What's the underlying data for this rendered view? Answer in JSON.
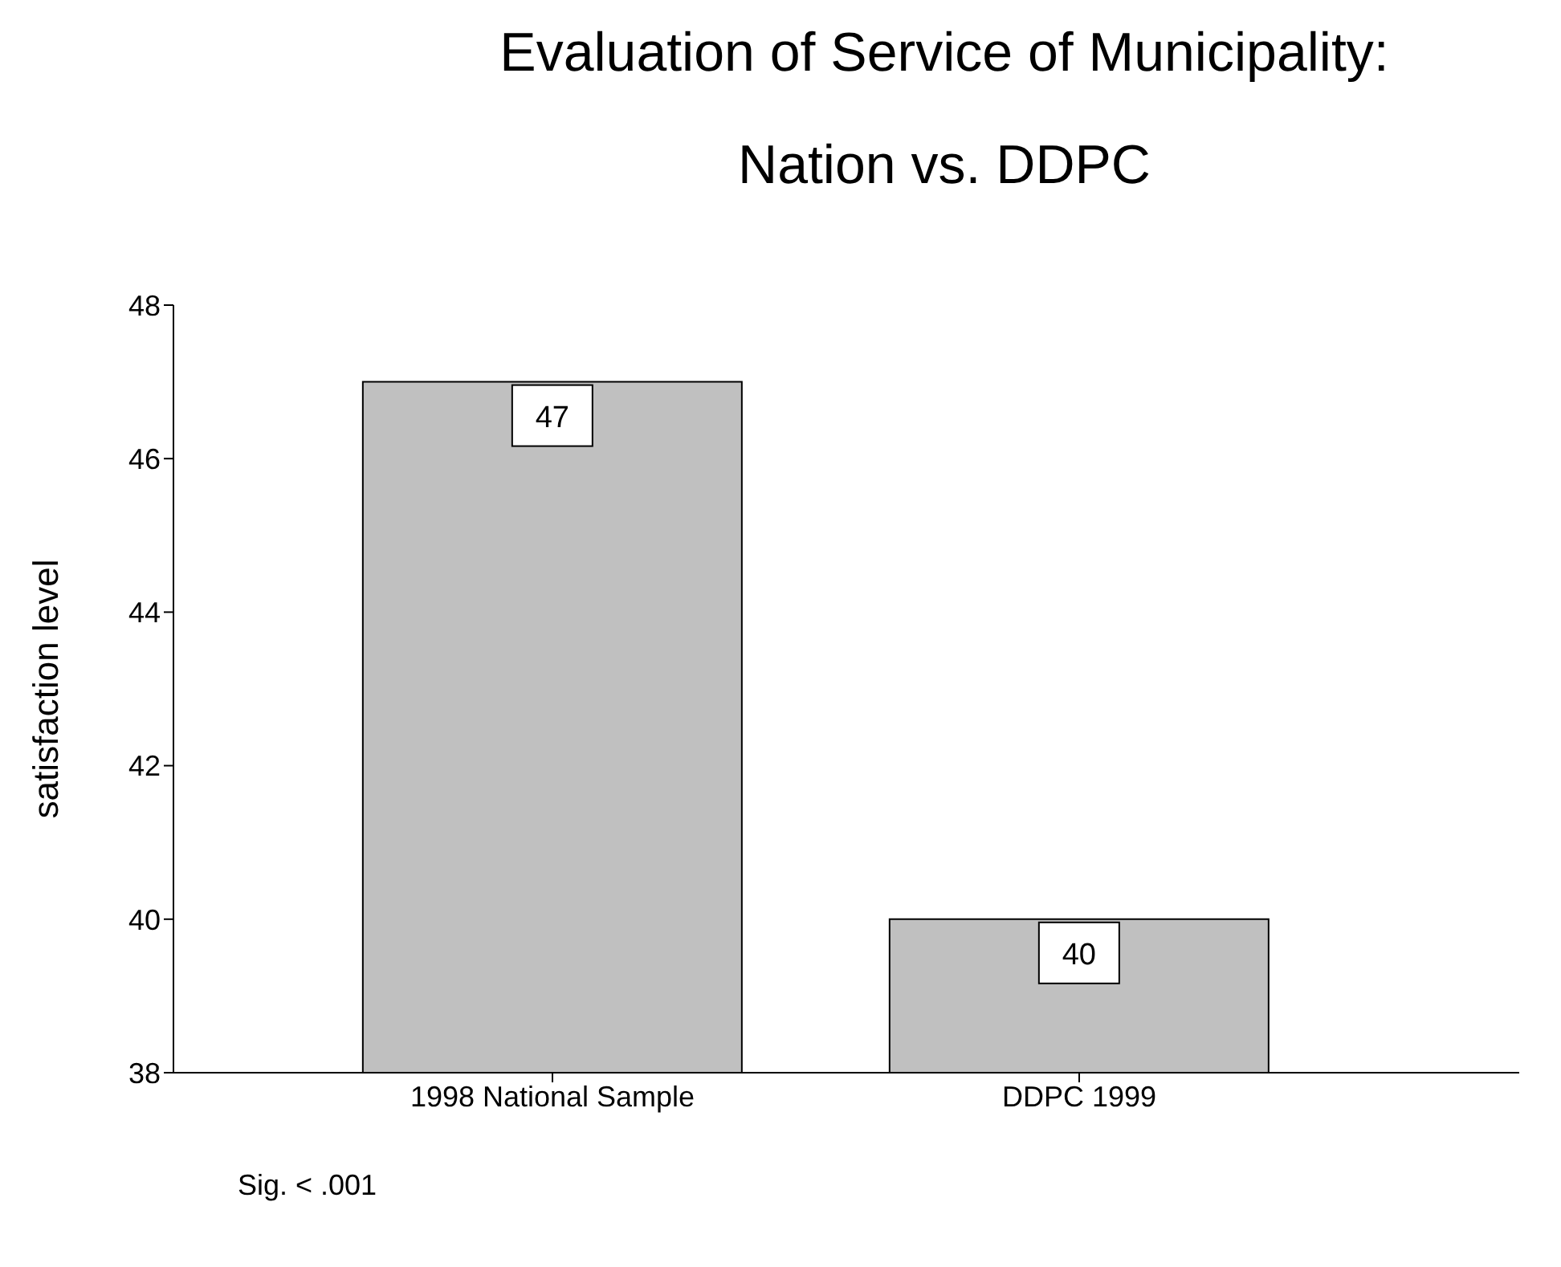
{
  "chart_data": {
    "type": "bar",
    "title": "Evaluation of Service of Municipality:",
    "subtitle": "Nation vs. DDPC",
    "ylabel": "satisfaction level",
    "categories": [
      "1998 National Sample",
      "DDPC 1999"
    ],
    "values": [
      47,
      40
    ],
    "color": "#c0c0c0",
    "ylim": [
      38,
      48
    ],
    "yticks": [
      38,
      40,
      42,
      44,
      46,
      48
    ],
    "data_labels": true,
    "annotations": [
      "Sig. < .001"
    ]
  }
}
